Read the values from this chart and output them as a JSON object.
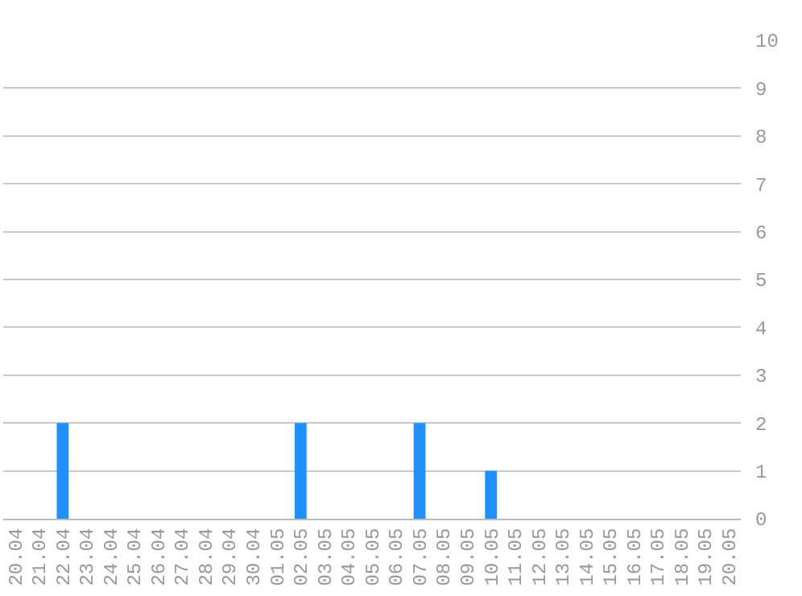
{
  "chart_data": {
    "type": "bar",
    "categories": [
      "20.04",
      "21.04",
      "22.04",
      "23.04",
      "24.04",
      "25.04",
      "26.04",
      "27.04",
      "28.04",
      "29.04",
      "30.04",
      "01.05",
      "02.05",
      "03.05",
      "04.05",
      "05.05",
      "06.05",
      "07.05",
      "08.05",
      "09.05",
      "10.05",
      "11.05",
      "12.05",
      "13.05",
      "14.05",
      "15.05",
      "16.05",
      "17.05",
      "18.05",
      "19.05",
      "20.05"
    ],
    "values": [
      0,
      0,
      2,
      0,
      0,
      0,
      0,
      0,
      0,
      0,
      0,
      0,
      2,
      0,
      0,
      0,
      0,
      2,
      0,
      0,
      1,
      0,
      0,
      0,
      0,
      0,
      0,
      0,
      0,
      0,
      0
    ],
    "color": "#1e90ff",
    "ylim": [
      0,
      10
    ],
    "yticks": [
      0,
      1,
      2,
      3,
      4,
      5,
      6,
      7,
      8,
      9,
      10
    ],
    "grid": "y"
  }
}
